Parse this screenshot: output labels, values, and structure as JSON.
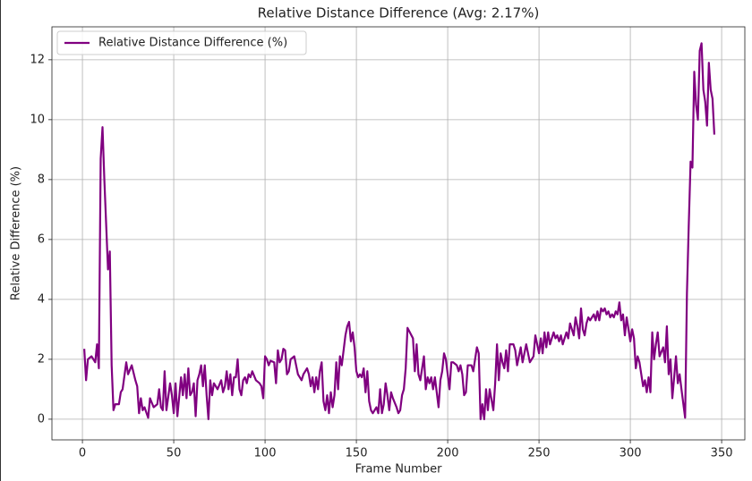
{
  "chart_data": {
    "type": "line",
    "title": "Relative Distance Difference (Avg: 2.17%)",
    "xlabel": "Frame Number",
    "ylabel": "Relative Difference (%)",
    "xlim": [
      -16.7,
      362.7
    ],
    "ylim": [
      -0.69,
      13.1
    ],
    "xticks": [
      0,
      50,
      100,
      150,
      200,
      250,
      300,
      350
    ],
    "yticks": [
      0,
      2,
      4,
      6,
      8,
      10,
      12
    ],
    "grid": true,
    "legend": "upper left",
    "x": [
      1,
      2,
      3,
      5,
      7,
      8,
      9,
      10,
      11,
      12,
      14,
      15,
      16,
      17,
      18,
      20,
      21,
      22,
      24,
      25,
      27,
      29,
      30,
      31,
      32,
      33,
      34,
      36,
      37,
      39,
      41,
      42,
      43,
      44,
      45,
      46,
      48,
      49,
      50,
      51,
      52,
      54,
      55,
      56,
      57,
      58,
      59,
      60,
      61,
      62,
      63,
      64,
      65,
      66,
      67,
      68,
      69,
      70,
      71,
      72,
      74,
      76,
      77,
      78,
      79,
      80,
      81,
      82,
      83,
      84,
      85,
      86,
      87,
      88,
      89,
      90,
      91,
      92,
      93,
      95,
      97,
      98,
      99,
      100,
      101,
      102,
      103,
      105,
      106,
      107,
      108,
      109,
      110,
      111,
      112,
      113,
      114,
      116,
      117,
      118,
      120,
      121,
      123,
      124,
      125,
      126,
      127,
      128,
      129,
      130,
      131,
      132,
      133,
      134,
      135,
      136,
      137,
      138,
      139,
      140,
      141,
      142,
      143,
      144,
      145,
      146,
      147,
      148,
      149,
      150,
      151,
      152,
      153,
      154,
      155,
      156,
      157,
      158,
      159,
      160,
      161,
      162,
      163,
      164,
      165,
      166,
      167,
      168,
      169,
      170,
      172,
      173,
      174,
      175,
      176,
      177,
      178,
      181,
      182,
      183,
      184,
      185,
      187,
      188,
      189,
      190,
      191,
      192,
      193,
      195,
      196,
      197,
      198,
      199,
      200,
      201,
      202,
      203,
      205,
      206,
      207,
      208,
      209,
      210,
      211,
      213,
      214,
      215,
      216,
      217,
      218,
      219,
      220,
      221,
      222,
      223,
      225,
      226,
      227,
      228,
      229,
      230,
      231,
      232,
      233,
      234,
      236,
      237,
      238,
      240,
      241,
      242,
      243,
      244,
      245,
      247,
      248,
      249,
      250,
      251,
      252,
      253,
      254,
      255,
      256,
      258,
      259,
      260,
      261,
      262,
      263,
      264,
      265,
      266,
      267,
      269,
      270,
      271,
      272,
      273,
      274,
      275,
      276,
      277,
      278,
      280,
      281,
      282,
      283,
      284,
      285,
      286,
      287,
      288,
      289,
      290,
      291,
      292,
      293,
      294,
      295,
      296,
      297,
      298,
      300,
      301,
      302,
      303,
      304,
      305,
      307,
      308,
      309,
      310,
      311,
      312,
      313,
      314,
      315,
      316,
      318,
      319,
      320,
      321,
      322,
      323,
      325,
      326,
      327,
      328,
      330,
      331,
      332,
      333,
      334,
      335,
      336,
      337,
      338,
      339,
      340,
      341,
      342,
      343,
      344,
      345,
      346
    ],
    "series": [
      {
        "name": "Relative Distance Difference (%)",
        "color": "#800080",
        "values": [
          2.35,
          1.3,
          2.0,
          2.1,
          1.9,
          2.5,
          1.7,
          8.7,
          9.75,
          8.0,
          5.0,
          5.6,
          1.8,
          0.3,
          0.5,
          0.5,
          0.9,
          1.0,
          1.9,
          1.5,
          1.8,
          1.3,
          1.1,
          0.2,
          0.7,
          0.3,
          0.4,
          0.05,
          0.7,
          0.4,
          0.5,
          1.0,
          0.4,
          0.3,
          1.6,
          0.3,
          1.2,
          0.8,
          0.2,
          1.2,
          0.1,
          1.4,
          0.8,
          1.5,
          0.7,
          1.7,
          0.8,
          0.9,
          1.2,
          0.1,
          1.3,
          1.5,
          1.8,
          1.1,
          1.8,
          0.8,
          0.0,
          1.3,
          0.8,
          1.2,
          1.0,
          1.3,
          0.9,
          1.1,
          1.6,
          1.0,
          1.5,
          0.8,
          1.4,
          1.4,
          2.0,
          1.0,
          0.8,
          1.3,
          1.4,
          1.2,
          1.5,
          1.4,
          1.6,
          1.3,
          1.2,
          1.1,
          0.7,
          2.1,
          2.0,
          1.8,
          1.95,
          1.9,
          1.2,
          2.3,
          1.9,
          2.0,
          2.35,
          2.3,
          1.5,
          1.6,
          2.0,
          2.1,
          1.8,
          1.5,
          1.3,
          1.5,
          1.7,
          1.5,
          1.1,
          1.4,
          0.9,
          1.4,
          1.0,
          1.6,
          1.9,
          0.6,
          0.3,
          0.8,
          0.2,
          0.9,
          0.4,
          0.8,
          1.9,
          1.0,
          2.1,
          1.8,
          2.3,
          2.8,
          3.1,
          3.25,
          2.6,
          2.9,
          2.4,
          1.6,
          1.4,
          1.5,
          1.4,
          1.7,
          0.9,
          1.6,
          0.6,
          0.3,
          0.2,
          0.3,
          0.4,
          0.2,
          1.0,
          0.2,
          0.5,
          1.2,
          0.8,
          0.3,
          0.9,
          0.7,
          0.4,
          0.2,
          0.3,
          0.8,
          1.0,
          1.7,
          3.05,
          2.7,
          1.6,
          2.5,
          1.5,
          1.3,
          2.1,
          1.0,
          1.4,
          1.2,
          1.4,
          1.0,
          1.4,
          0.4,
          1.3,
          1.6,
          2.2,
          2.0,
          1.5,
          1.0,
          1.9,
          1.9,
          1.8,
          1.6,
          1.8,
          1.5,
          0.8,
          0.9,
          1.8,
          1.8,
          1.6,
          2.0,
          2.4,
          2.2,
          0.0,
          0.5,
          0.0,
          1.0,
          0.3,
          1.0,
          0.3,
          1.2,
          2.5,
          1.3,
          2.2,
          1.9,
          1.7,
          2.3,
          1.6,
          2.5,
          2.5,
          2.3,
          1.8,
          2.4,
          1.9,
          2.2,
          2.5,
          2.2,
          1.9,
          2.1,
          2.8,
          2.5,
          2.2,
          2.7,
          2.2,
          2.9,
          2.4,
          2.9,
          2.5,
          2.9,
          2.7,
          2.8,
          2.6,
          2.8,
          2.5,
          2.7,
          2.9,
          2.7,
          3.2,
          2.8,
          3.4,
          3.1,
          2.7,
          3.7,
          3.0,
          2.8,
          3.2,
          3.4,
          3.3,
          3.5,
          3.3,
          3.6,
          3.3,
          3.7,
          3.6,
          3.7,
          3.5,
          3.6,
          3.4,
          3.5,
          3.4,
          3.6,
          3.5,
          3.9,
          3.3,
          3.5,
          2.8,
          3.4,
          2.6,
          3.0,
          2.7,
          1.7,
          2.1,
          1.9,
          1.1,
          1.3,
          0.9,
          1.4,
          0.9,
          2.9,
          2.0,
          2.5,
          2.9,
          2.1,
          2.4,
          1.9,
          3.1,
          1.5,
          2.0,
          0.7,
          2.1,
          1.2,
          1.5,
          1.0,
          0.05,
          4.2,
          6.5,
          8.6,
          8.4,
          11.6,
          10.5,
          10.0,
          12.3,
          12.55,
          11.0,
          10.6,
          9.8,
          11.9,
          11.0,
          10.7,
          9.5
        ]
      }
    ]
  }
}
